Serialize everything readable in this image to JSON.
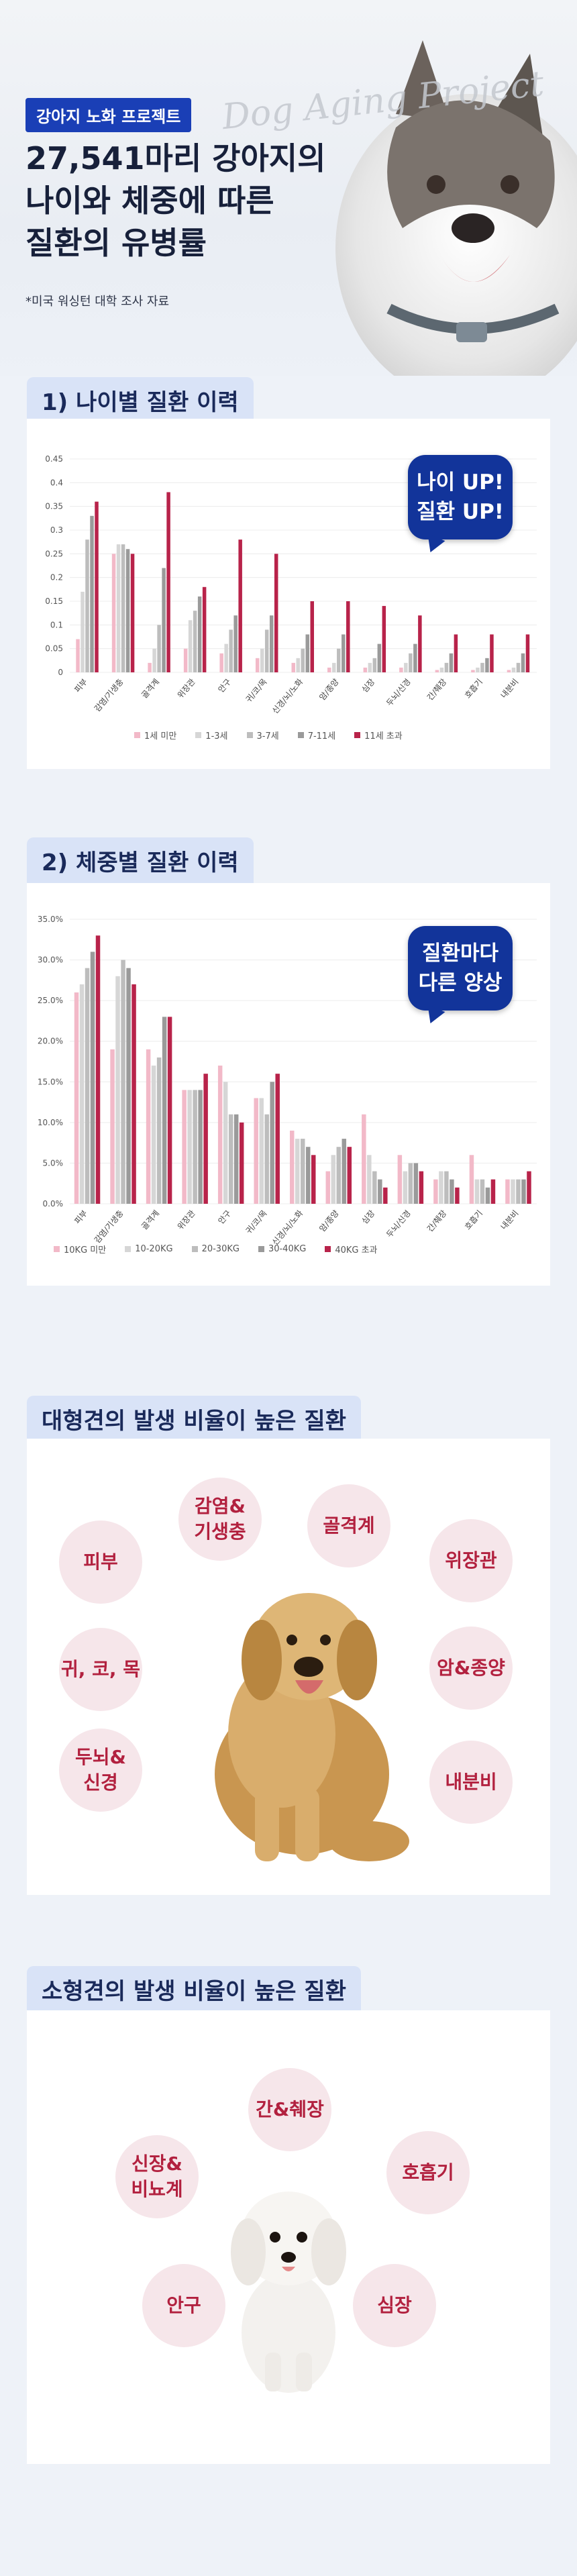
{
  "hero": {
    "badge": "강아지 노화 프로젝트",
    "script_text": "Dog Aging Project",
    "title_line1": "27,541마리 강아지의",
    "title_line2": "나이와 체중에 따른",
    "title_line3": "질환의 유병률",
    "note": "*미국 워싱턴 대학 조사 자료"
  },
  "section1": {
    "title": "1) 나이별 질환 이력",
    "callout_line1": "나이 UP!",
    "callout_line2": "질환 UP!"
  },
  "section2": {
    "title": "2) 체중별 질환 이력",
    "callout_line1": "질환마다",
    "callout_line2": "다른 양상"
  },
  "section3": {
    "title": "대형견의 발생 비율이 높은 질환",
    "diseases": [
      "피부",
      "감염&\n기생충",
      "골격계",
      "위장관",
      "귀, 코, 목",
      "암&종양",
      "두뇌&\n신경",
      "내분비"
    ]
  },
  "section4": {
    "title": "소형견의 발생 비율이 높은 질환",
    "diseases": [
      "간&췌장",
      "신장&\n비뇨계",
      "호흡기",
      "안구",
      "심장"
    ]
  },
  "colors": {
    "c1": "#f2b9c8",
    "c2": "#d6d6d6",
    "c3": "#bdbdbd",
    "c4": "#9a9a9a",
    "c5": "#b8234a",
    "navy": "#12349a"
  },
  "chart_data": [
    {
      "type": "bar",
      "categories": [
        "피부",
        "감염/기생충",
        "골격계",
        "위장관",
        "안구",
        "귀/코/목",
        "신경/뇌/노화",
        "암/종양",
        "심장",
        "두뇌/신경",
        "간/췌장",
        "호흡기",
        "내분비"
      ],
      "ylim": [
        0,
        0.45
      ],
      "yticks": [
        "0",
        "0.05",
        "0.1",
        "0.15",
        "0.2",
        "0.25",
        "0.3",
        "0.35",
        "0.4",
        "0.45"
      ],
      "series": [
        {
          "name": "1세 미만",
          "values": [
            0.07,
            0.25,
            0.02,
            0.05,
            0.04,
            0.03,
            0.02,
            0.01,
            0.01,
            0.01,
            0.005,
            0.005,
            0.005
          ]
        },
        {
          "name": "1-3세",
          "values": [
            0.17,
            0.27,
            0.05,
            0.11,
            0.06,
            0.05,
            0.03,
            0.02,
            0.02,
            0.02,
            0.01,
            0.01,
            0.01
          ]
        },
        {
          "name": "3-7세",
          "values": [
            0.28,
            0.27,
            0.1,
            0.13,
            0.09,
            0.09,
            0.05,
            0.05,
            0.03,
            0.04,
            0.02,
            0.02,
            0.02
          ]
        },
        {
          "name": "7-11세",
          "values": [
            0.33,
            0.26,
            0.22,
            0.16,
            0.12,
            0.12,
            0.08,
            0.08,
            0.06,
            0.06,
            0.04,
            0.03,
            0.04
          ]
        },
        {
          "name": "11세 초과",
          "values": [
            0.36,
            0.25,
            0.38,
            0.18,
            0.28,
            0.25,
            0.15,
            0.15,
            0.14,
            0.12,
            0.08,
            0.08,
            0.08
          ]
        }
      ]
    },
    {
      "type": "bar",
      "categories": [
        "피부",
        "감염/기생충",
        "골격계",
        "위장관",
        "안구",
        "귀/코/목",
        "신경/뇌/노화",
        "암/종양",
        "심장",
        "두뇌/신경",
        "간/췌장",
        "호흡기",
        "내분비"
      ],
      "ylim": [
        0,
        35
      ],
      "yticks": [
        "0.0%",
        "5.0%",
        "10.0%",
        "15.0%",
        "20.0%",
        "25.0%",
        "30.0%",
        "35.0%"
      ],
      "series": [
        {
          "name": "10KG 미만",
          "values": [
            26,
            19,
            19,
            14,
            17,
            13,
            9,
            4,
            11,
            6,
            3,
            6,
            3
          ]
        },
        {
          "name": "10-20KG",
          "values": [
            27,
            28,
            17,
            14,
            15,
            13,
            8,
            6,
            6,
            4,
            4,
            3,
            3
          ]
        },
        {
          "name": "20-30KG",
          "values": [
            29,
            30,
            18,
            14,
            11,
            11,
            8,
            7,
            4,
            5,
            4,
            3,
            3
          ]
        },
        {
          "name": "30-40KG",
          "values": [
            31,
            29,
            23,
            14,
            11,
            15,
            7,
            8,
            3,
            5,
            3,
            2,
            3
          ]
        },
        {
          "name": "40KG 초과",
          "values": [
            33,
            27,
            23,
            16,
            10,
            16,
            6,
            7,
            2,
            4,
            2,
            3,
            4
          ]
        }
      ]
    }
  ]
}
